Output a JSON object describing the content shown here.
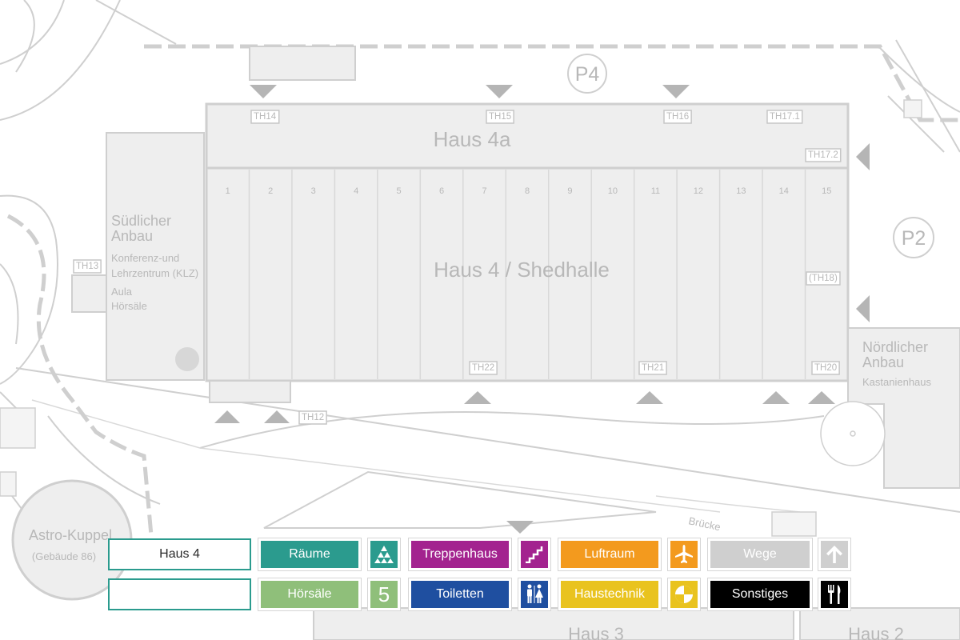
{
  "map": {
    "buildings": {
      "haus4a": "Haus 4a",
      "haus4": "Haus 4 / Shedhalle",
      "suedlich_line1": "Südlicher",
      "suedlich_line2": "Anbau",
      "klz_line1": "Konferenz-und",
      "klz_line2": "Lehrzentrum (KLZ)",
      "aula": "Aula",
      "hoersaele": "Hörsäle",
      "noerdlich_line1": "Nördlicher",
      "noerdlich_line2": "Anbau",
      "kastanienhaus": "Kastanienhaus",
      "astro_line1": "Astro-Kuppel",
      "astro_line2": "(Gebäude 86)",
      "haus3": "Haus 3",
      "haus2": "Haus 2",
      "bruecke": "Brücke"
    },
    "parking": [
      "P4",
      "P2"
    ],
    "bays": [
      "1",
      "2",
      "3",
      "4",
      "5",
      "6",
      "7",
      "8",
      "9",
      "10",
      "11",
      "12",
      "13",
      "14",
      "15"
    ],
    "gates": {
      "th14": "TH14",
      "th15": "TH15",
      "th16": "TH16",
      "th17_1": "TH17.1",
      "th17_2": "TH17.2",
      "th13": "TH13",
      "th18": "(TH18)",
      "th22": "TH22",
      "th21": "TH21",
      "th20": "TH20",
      "th12": "TH12"
    }
  },
  "legend": {
    "search_value": "Haus 4",
    "search_value_2": "",
    "raeume": "Räume",
    "hoersaele": "Hörsäle",
    "treppenhaus": "Treppenhaus",
    "toiletten": "Toiletten",
    "luftraum": "Luftraum",
    "haustechnik": "Haustechnik",
    "wege": "Wege",
    "sonstiges": "Sonstiges",
    "hoersaal_icon_text": "5",
    "colors": {
      "raeume": "#2b9b8e",
      "hoersaele": "#8fbf7a",
      "treppenhaus": "#a3238f",
      "toiletten": "#1f4fa0",
      "luftraum": "#f39a1e",
      "haustechnik": "#e9c31f",
      "wege": "#cfcfcf",
      "sonstiges": "#000000"
    },
    "icons": {
      "raeume": "room-triangle-icon",
      "hoersaele": "number-five-icon",
      "treppenhaus": "stairs-icon",
      "toiletten": "restroom-icon",
      "luftraum": "airplane-icon",
      "haustechnik": "technical-icon",
      "wege": "arrow-up-icon",
      "sonstiges": "cutlery-icon"
    }
  }
}
